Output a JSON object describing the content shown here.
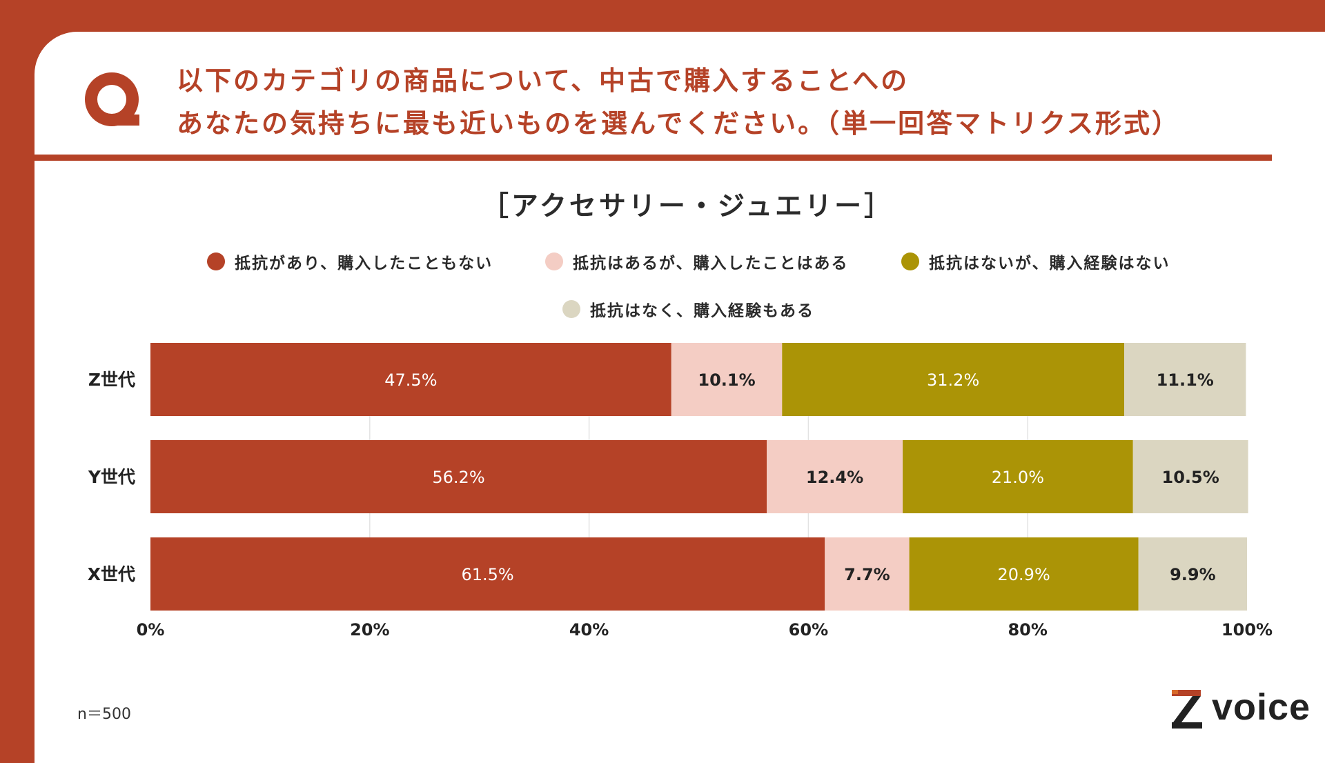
{
  "question": {
    "mark": "Q",
    "line1": "以下のカテゴリの商品について、中古で購入することへの",
    "line2": "あなたの気持ちに最も近いものを選んでください。（単一回答マトリクス形式）"
  },
  "chart_data": {
    "type": "bar",
    "orientation": "horizontal-stacked-100",
    "title": "［アクセサリー・ジュエリー］",
    "categories": [
      "Z世代",
      "Y世代",
      "X世代"
    ],
    "series": [
      {
        "name": "抵抗があり、購入したこともない",
        "values": [
          47.5,
          56.2,
          61.5
        ],
        "color": "#b54227"
      },
      {
        "name": "抵抗はあるが、購入したことはある",
        "values": [
          10.1,
          12.4,
          7.7
        ],
        "color": "#f4cdc4"
      },
      {
        "name": "抵抗はないが、購入経験はない",
        "values": [
          31.2,
          21.0,
          20.9
        ],
        "color": "#ab9406"
      },
      {
        "name": "抵抗はなく、購入経験もある",
        "values": [
          11.1,
          10.5,
          9.9
        ],
        "color": "#dbd6c1"
      }
    ],
    "data_labels": [
      [
        "47.5%",
        "56.2%",
        "61.5%"
      ],
      [
        "10.1%",
        "12.4%",
        "7.7%"
      ],
      [
        "31.2%",
        "21.0%",
        "20.9%"
      ],
      [
        "11.1%",
        "10.5%",
        "9.9%"
      ]
    ],
    "x_ticks": [
      "0%",
      "20%",
      "40%",
      "60%",
      "80%",
      "100%"
    ],
    "xlim": [
      0,
      100
    ],
    "grid": true,
    "legend_position": "top"
  },
  "footnote": "n＝500",
  "logo": {
    "mark": "Z",
    "word": "voice"
  },
  "colors": {
    "accent": "#b54227",
    "gridline": "#e3e3e3"
  }
}
